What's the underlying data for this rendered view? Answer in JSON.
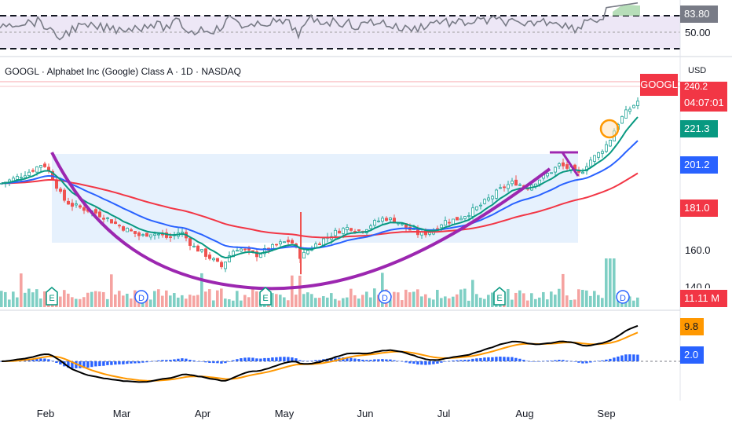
{
  "header": {
    "title": "GOOGL · Alphabet Inc (Google) Class A · 1D · NASDAQ",
    "currency": "USD"
  },
  "colors": {
    "up": "#26a69a",
    "down": "#ef5350",
    "ema_fast": "#089981",
    "ema_mid": "#2962ff",
    "ema_slow": "#f23645",
    "arc": "#9c27b0",
    "base_fill": "#e3effd",
    "rsi_fill": "#ede7f6",
    "macd": "#000000",
    "signal": "#ff9800",
    "histogram": "#2962ff",
    "circle": "#ff9800"
  },
  "rsi": {
    "value_label": "83.80",
    "mid_label": "50.00"
  },
  "price_panel": {
    "symbol_tag": "GOOGL",
    "last_price_partial": "240.2",
    "countdown": "04:07:01",
    "ema_fast_label": "221.3",
    "ema_mid_label": "201.2",
    "ema_slow_label": "181.0",
    "axis_label_160": "160.0",
    "axis_label_140": "140.0",
    "volume_label": "11.11 M"
  },
  "macd": {
    "macd_label": "9.8",
    "hist_label": "2.0"
  },
  "event_markers": [
    "E",
    "D",
    "E",
    "D",
    "E",
    "D"
  ],
  "x_axis": {
    "months": [
      "Feb",
      "Mar",
      "Apr",
      "May",
      "Jun",
      "Jul",
      "Aug",
      "Sep"
    ]
  },
  "chart_data": {
    "type": "candlestick",
    "symbol": "GOOGL",
    "timeframe": "1D",
    "exchange": "NASDAQ",
    "y_ticks": [
      140,
      160
    ],
    "ema_values_latest": {
      "ema_fast": 221.3,
      "ema_mid": 201.2,
      "ema_slow": 181.0
    },
    "volume_latest": "11.11 M",
    "rsi_latest": 83.8,
    "rsi_midline": 50.0,
    "macd_latest": 9.8,
    "macd_hist_latest": 2.0,
    "close_anchors": [
      {
        "x": 0,
        "y": 195
      },
      {
        "x": 20,
        "y": 198
      },
      {
        "x": 40,
        "y": 202
      },
      {
        "x": 55,
        "y": 206
      },
      {
        "x": 65,
        "y": 200
      },
      {
        "x": 80,
        "y": 187
      },
      {
        "x": 90,
        "y": 184
      },
      {
        "x": 105,
        "y": 182
      },
      {
        "x": 120,
        "y": 180
      },
      {
        "x": 135,
        "y": 177
      },
      {
        "x": 150,
        "y": 173
      },
      {
        "x": 165,
        "y": 170
      },
      {
        "x": 180,
        "y": 167
      },
      {
        "x": 190,
        "y": 169
      },
      {
        "x": 205,
        "y": 168
      },
      {
        "x": 215,
        "y": 166
      },
      {
        "x": 230,
        "y": 170
      },
      {
        "x": 245,
        "y": 162
      },
      {
        "x": 260,
        "y": 158
      },
      {
        "x": 270,
        "y": 155
      },
      {
        "x": 282,
        "y": 151
      },
      {
        "x": 292,
        "y": 157
      },
      {
        "x": 300,
        "y": 161
      },
      {
        "x": 310,
        "y": 160
      },
      {
        "x": 325,
        "y": 157
      },
      {
        "x": 340,
        "y": 160
      },
      {
        "x": 355,
        "y": 163
      },
      {
        "x": 370,
        "y": 165
      },
      {
        "x": 383,
        "y": 156
      },
      {
        "x": 395,
        "y": 161
      },
      {
        "x": 410,
        "y": 165
      },
      {
        "x": 430,
        "y": 170
      },
      {
        "x": 445,
        "y": 172
      },
      {
        "x": 460,
        "y": 170
      },
      {
        "x": 475,
        "y": 174
      },
      {
        "x": 490,
        "y": 177
      },
      {
        "x": 505,
        "y": 175
      },
      {
        "x": 520,
        "y": 171
      },
      {
        "x": 535,
        "y": 168
      },
      {
        "x": 550,
        "y": 170
      },
      {
        "x": 565,
        "y": 175
      },
      {
        "x": 580,
        "y": 176
      },
      {
        "x": 595,
        "y": 179
      },
      {
        "x": 610,
        "y": 183
      },
      {
        "x": 625,
        "y": 188
      },
      {
        "x": 640,
        "y": 193
      },
      {
        "x": 655,
        "y": 196
      },
      {
        "x": 670,
        "y": 193
      },
      {
        "x": 685,
        "y": 197
      },
      {
        "x": 700,
        "y": 201
      },
      {
        "x": 712,
        "y": 205
      },
      {
        "x": 725,
        "y": 203
      },
      {
        "x": 738,
        "y": 200
      },
      {
        "x": 750,
        "y": 207
      },
      {
        "x": 762,
        "y": 211
      },
      {
        "x": 775,
        "y": 217
      },
      {
        "x": 785,
        "y": 226
      },
      {
        "x": 795,
        "y": 232
      },
      {
        "x": 805,
        "y": 236
      },
      {
        "x": 815,
        "y": 240
      }
    ],
    "x_ticks": [
      "Feb",
      "Mar",
      "Apr",
      "May",
      "Jun",
      "Jul",
      "Aug",
      "Sep"
    ]
  }
}
